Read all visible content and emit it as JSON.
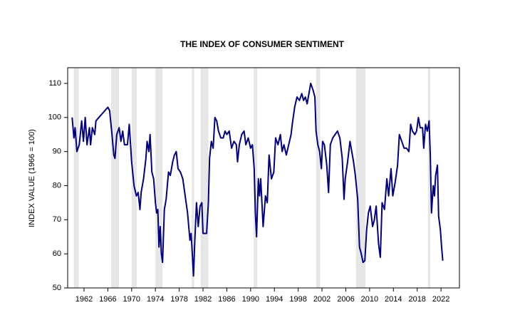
{
  "chart_data": {
    "type": "line",
    "title": "THE INDEX OF CONSUMER SENTIMENT",
    "ylabel": "INDEX VALUE (1966 = 100)",
    "color": "#000080",
    "shade_color": "#e6e6e6",
    "shaded_periods": [
      [
        1960.3,
        1961.1
      ],
      [
        1966.55,
        1967.87
      ],
      [
        1970.0,
        1970.85
      ],
      [
        1974.0,
        1975.2
      ],
      [
        1980.1,
        1980.5
      ],
      [
        1981.6,
        1982.9
      ],
      [
        1990.5,
        1991.1
      ],
      [
        2001.0,
        2001.7
      ],
      [
        2007.7,
        2009.3
      ],
      [
        2019.8,
        2020.2
      ]
    ],
    "x": [
      1960.0,
      1960.3,
      1960.5,
      1960.8,
      1961.2,
      1961.6,
      1961.9,
      1962.2,
      1962.5,
      1962.9,
      1963.1,
      1963.4,
      1963.8,
      1964.0,
      1964.5,
      1965.0,
      1965.5,
      1966.0,
      1966.3,
      1966.7,
      1967.0,
      1967.2,
      1967.5,
      1967.9,
      1968.2,
      1968.5,
      1968.8,
      1969.3,
      1969.6,
      1970.0,
      1970.4,
      1970.8,
      1971.1,
      1971.4,
      1971.6,
      1972.0,
      1972.4,
      1972.6,
      1972.9,
      1973.1,
      1973.4,
      1973.7,
      1974.0,
      1974.2,
      1974.4,
      1974.6,
      1974.8,
      1975.0,
      1975.2,
      1975.5,
      1975.8,
      1976.2,
      1976.5,
      1976.9,
      1977.2,
      1977.5,
      1977.8,
      1978.2,
      1978.6,
      1979.0,
      1979.4,
      1979.8,
      1980.0,
      1980.2,
      1980.4,
      1980.6,
      1980.9,
      1981.2,
      1981.5,
      1981.8,
      1982.0,
      1982.3,
      1982.6,
      1982.9,
      1983.1,
      1983.4,
      1983.7,
      1984.0,
      1984.3,
      1984.6,
      1985.0,
      1985.4,
      1985.7,
      1986.0,
      1986.4,
      1986.8,
      1987.2,
      1987.6,
      1987.8,
      1988.1,
      1988.5,
      1988.9,
      1989.2,
      1989.6,
      1990.0,
      1990.3,
      1990.6,
      1990.8,
      1991.0,
      1991.3,
      1991.5,
      1991.7,
      1992.1,
      1992.5,
      1992.8,
      1993.1,
      1993.5,
      1993.9,
      1994.2,
      1994.6,
      1995.0,
      1995.3,
      1995.6,
      1996.0,
      1996.4,
      1996.8,
      1997.0,
      1997.4,
      1997.8,
      1998.2,
      1998.6,
      1998.9,
      1999.2,
      1999.5,
      1999.8,
      2000.1,
      2000.5,
      2000.8,
      2001.0,
      2001.3,
      2001.6,
      2001.9,
      2002.1,
      2002.4,
      2002.8,
      2003.1,
      2003.4,
      2003.8,
      2004.2,
      2004.6,
      2005.0,
      2005.4,
      2005.7,
      2005.9,
      2006.3,
      2006.7,
      2006.9,
      2007.3,
      2007.6,
      2008.0,
      2008.3,
      2008.6,
      2008.9,
      2009.2,
      2009.5,
      2009.8,
      2010.1,
      2010.5,
      2010.8,
      2011.1,
      2011.5,
      2011.8,
      2012.1,
      2012.5,
      2012.9,
      2013.2,
      2013.6,
      2013.9,
      2014.3,
      2014.7,
      2015.0,
      2015.4,
      2015.8,
      2016.2,
      2016.6,
      2016.9,
      2017.2,
      2017.6,
      2017.9,
      2018.2,
      2018.5,
      2018.9,
      2019.1,
      2019.4,
      2019.7,
      2020.0,
      2020.2,
      2020.4,
      2020.7,
      2020.9,
      2021.1,
      2021.4,
      2021.6,
      2021.9,
      2022.1,
      2022.3
    ],
    "values": [
      100,
      94,
      97,
      90,
      92,
      99,
      93,
      100,
      92,
      97,
      92,
      97,
      95,
      99,
      100,
      101,
      102,
      103,
      102,
      95,
      89,
      88,
      95,
      97,
      93,
      96,
      92,
      92,
      98,
      87,
      80,
      77,
      78,
      73,
      78,
      82,
      88,
      93,
      90,
      95,
      84,
      82,
      75,
      72,
      73,
      62,
      68,
      60,
      57.5,
      73,
      76,
      84,
      83,
      87,
      89,
      90,
      85,
      84,
      82,
      77,
      72,
      64,
      66,
      60,
      53.5,
      63,
      75,
      68,
      74,
      75,
      66,
      66,
      66,
      75,
      88,
      93,
      91,
      100,
      99,
      96,
      94,
      94,
      96,
      95,
      96,
      91,
      93,
      92,
      87,
      92,
      95,
      96,
      92,
      94,
      91,
      92,
      85,
      72,
      65,
      82,
      77,
      82,
      68,
      77,
      75,
      89,
      82,
      84,
      94,
      92,
      95,
      90,
      92,
      89,
      92,
      95,
      98,
      103,
      106,
      105,
      107,
      105,
      106,
      104,
      107,
      110,
      108,
      106,
      96,
      92,
      90,
      85,
      93,
      92,
      86,
      78,
      92,
      94,
      95,
      96,
      94,
      88,
      76,
      82,
      87,
      93,
      91,
      87,
      83,
      76,
      62,
      60,
      57.5,
      58,
      67,
      72,
      74,
      68,
      70,
      74,
      63,
      59,
      75,
      73,
      82,
      77,
      85,
      77,
      81,
      86,
      95,
      93,
      91,
      91,
      90,
      98,
      96,
      95,
      96,
      100,
      97,
      97,
      91,
      98,
      96,
      99,
      89,
      72,
      80,
      77,
      83,
      86,
      71,
      67,
      62,
      58
    ],
    "xlim": [
      1959.25,
      2025.1
    ],
    "xticks": [
      1962,
      1966,
      1970,
      1974,
      1978,
      1982,
      1986,
      1990,
      1994,
      1998,
      2002,
      2006,
      2010,
      2014,
      2018,
      2022
    ],
    "ylim": [
      50,
      114.6
    ],
    "yticks": [
      50,
      60,
      70,
      80,
      90,
      100,
      110
    ]
  }
}
